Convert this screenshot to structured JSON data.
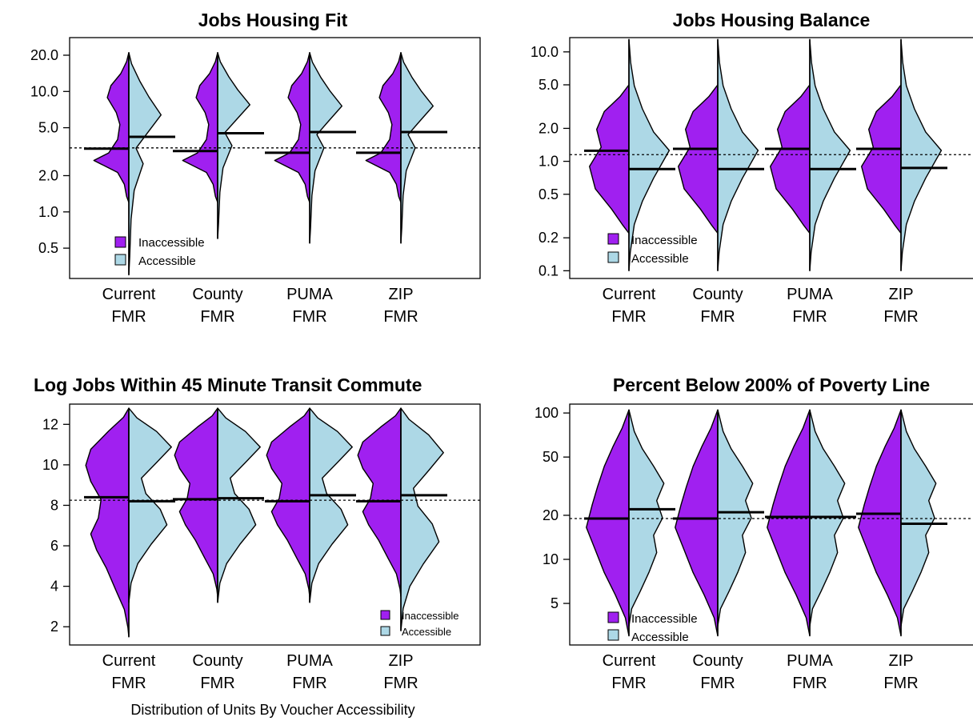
{
  "figure_caption": "Distribution of Units By Voucher Accessibility",
  "colors": {
    "inaccessible": "#a020f0",
    "accessible": "#add8e6",
    "line": "#000000"
  },
  "chart_data": [
    {
      "type": "split-violin",
      "title": "Jobs Housing Fit",
      "xlabel": "",
      "ylabel": "",
      "scale": "log",
      "ylim": [
        0.28,
        28
      ],
      "yticks": [
        {
          "v": 0.5,
          "label": "0.5"
        },
        {
          "v": 1,
          "label": "1.0"
        },
        {
          "v": 2,
          "label": "2.0"
        },
        {
          "v": 5,
          "label": "5.0"
        },
        {
          "v": 10,
          "label": "10.0"
        },
        {
          "v": 20,
          "label": "20.0"
        }
      ],
      "categories": [
        [
          "Current",
          "FMR"
        ],
        [
          "County",
          "FMR"
        ],
        [
          "PUMA",
          "FMR"
        ],
        [
          "ZIP",
          "FMR"
        ]
      ],
      "reference_line": 3.4,
      "medians": {
        "inaccessible": [
          3.35,
          3.2,
          3.1,
          3.1
        ],
        "accessible": [
          4.2,
          4.5,
          4.6,
          4.6
        ]
      },
      "ranges": {
        "inaccessible": [
          [
            1.2,
            21
          ],
          [
            1.2,
            21
          ],
          [
            1.2,
            21
          ],
          [
            1.2,
            21
          ]
        ],
        "accessible": [
          [
            0.3,
            21
          ],
          [
            0.6,
            21
          ],
          [
            0.55,
            21
          ],
          [
            0.55,
            21
          ]
        ]
      },
      "legend": {
        "items": [
          "Inaccessible",
          "Accessible"
        ],
        "position": "bottom-left"
      }
    },
    {
      "type": "split-violin",
      "title": "Jobs Housing Balance",
      "xlabel": "",
      "ylabel": "",
      "scale": "log",
      "ylim": [
        0.085,
        13.5
      ],
      "yticks": [
        {
          "v": 0.1,
          "label": "0.1"
        },
        {
          "v": 0.2,
          "label": "0.2"
        },
        {
          "v": 0.5,
          "label": "0.5"
        },
        {
          "v": 1,
          "label": "1.0"
        },
        {
          "v": 2,
          "label": "2.0"
        },
        {
          "v": 5,
          "label": "5.0"
        },
        {
          "v": 10,
          "label": "10.0"
        }
      ],
      "categories": [
        [
          "Current",
          "FMR"
        ],
        [
          "County",
          "FMR"
        ],
        [
          "PUMA",
          "FMR"
        ],
        [
          "ZIP",
          "FMR"
        ]
      ],
      "reference_line": 1.15,
      "medians": {
        "inaccessible": [
          1.25,
          1.3,
          1.3,
          1.3
        ],
        "accessible": [
          0.85,
          0.85,
          0.85,
          0.87
        ]
      },
      "ranges": {
        "inaccessible": [
          [
            0.22,
            5
          ],
          [
            0.22,
            5
          ],
          [
            0.22,
            5
          ],
          [
            0.22,
            5
          ]
        ],
        "accessible": [
          [
            0.1,
            13
          ],
          [
            0.1,
            13
          ],
          [
            0.1,
            13
          ],
          [
            0.1,
            13
          ]
        ]
      },
      "legend": {
        "items": [
          "Inaccessible",
          "Accessible"
        ],
        "position": "bottom-left"
      }
    },
    {
      "type": "split-violin",
      "title": "Log Jobs Within 45 Minute Transit Commute",
      "xlabel": "",
      "ylabel": "",
      "scale": "linear",
      "ylim": [
        1.1,
        13
      ],
      "yticks": [
        {
          "v": 2,
          "label": "2"
        },
        {
          "v": 4,
          "label": "4"
        },
        {
          "v": 6,
          "label": "6"
        },
        {
          "v": 8,
          "label": "8"
        },
        {
          "v": 10,
          "label": "10"
        },
        {
          "v": 12,
          "label": "12"
        }
      ],
      "categories": [
        [
          "Current",
          "FMR"
        ],
        [
          "County",
          "FMR"
        ],
        [
          "PUMA",
          "FMR"
        ],
        [
          "ZIP",
          "FMR"
        ]
      ],
      "reference_line": 8.25,
      "medians": {
        "inaccessible": [
          8.4,
          8.3,
          8.2,
          8.2
        ],
        "accessible": [
          8.2,
          8.35,
          8.5,
          8.5
        ]
      },
      "ranges": {
        "inaccessible": [
          [
            1.5,
            12.8
          ],
          [
            3.5,
            12.8
          ],
          [
            3.5,
            12.8
          ],
          [
            3.5,
            12.8
          ]
        ],
        "accessible": [
          [
            3.2,
            12.8
          ],
          [
            3.2,
            12.8
          ],
          [
            3.2,
            12.8
          ],
          [
            1.8,
            12.8
          ]
        ]
      },
      "legend": {
        "items": [
          "Inaccessible",
          "Accessible"
        ],
        "position": "bottom-right"
      }
    },
    {
      "type": "split-violin",
      "title": "Percent Below 200% of Poverty Line",
      "xlabel": "",
      "ylabel": "",
      "scale": "log",
      "ylim": [
        2.6,
        115
      ],
      "yticks": [
        {
          "v": 5,
          "label": "5"
        },
        {
          "v": 10,
          "label": "10"
        },
        {
          "v": 20,
          "label": "20"
        },
        {
          "v": 50,
          "label": "50"
        },
        {
          "v": 100,
          "label": "100"
        }
      ],
      "categories": [
        [
          "Current",
          "FMR"
        ],
        [
          "County",
          "FMR"
        ],
        [
          "PUMA",
          "FMR"
        ],
        [
          "ZIP",
          "FMR"
        ]
      ],
      "reference_line": 19,
      "medians": {
        "inaccessible": [
          19,
          19,
          19.5,
          20.5
        ],
        "accessible": [
          22,
          21,
          19.5,
          17.5
        ]
      },
      "ranges": {
        "inaccessible": [
          [
            3,
            105
          ],
          [
            3,
            105
          ],
          [
            3,
            105
          ],
          [
            3,
            105
          ]
        ],
        "accessible": [
          [
            3.5,
            105
          ],
          [
            3.5,
            105
          ],
          [
            3.5,
            105
          ],
          [
            3.5,
            105
          ]
        ]
      },
      "legend": {
        "items": [
          "Inaccessible",
          "Accessible"
        ],
        "position": "bottom-left"
      }
    }
  ]
}
